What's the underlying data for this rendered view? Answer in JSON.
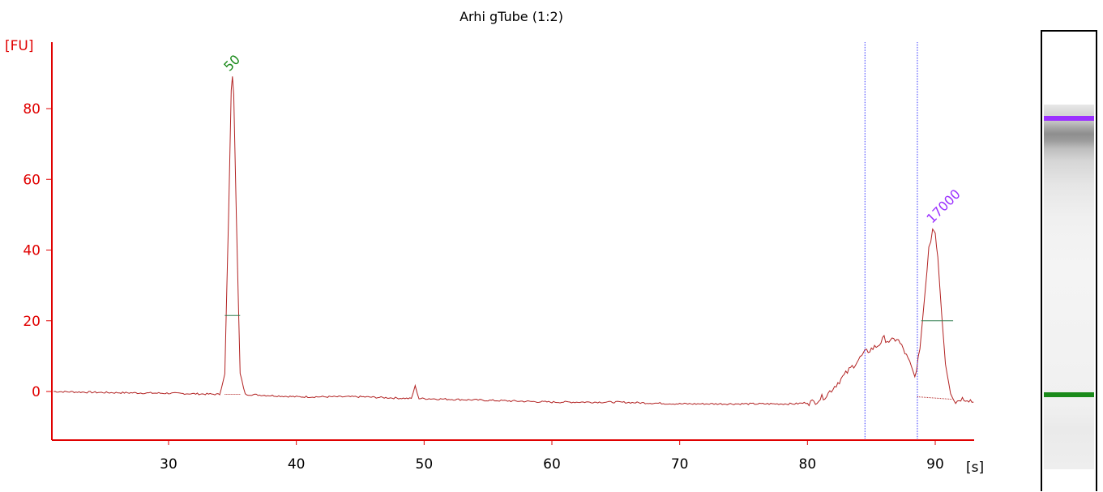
{
  "chart_data": {
    "type": "line",
    "title": "Arhi gTube (1:2)",
    "ylabel": "[FU]",
    "xlabel": "[s]",
    "xlim": [
      21,
      93
    ],
    "ylim": [
      -13,
      100
    ],
    "xticks": [
      30,
      40,
      50,
      60,
      70,
      80,
      90
    ],
    "yticks": [
      0,
      20,
      40,
      60,
      80
    ],
    "colors": {
      "trace": "#b22222",
      "axis": "#e00000",
      "marker": "#3a3aff",
      "lower_marker": "#1a8a1a",
      "upper_marker": "#9b30ff"
    },
    "series": [
      {
        "x": [
          21,
          25,
          30,
          34,
          34.4,
          34.7,
          34.9,
          35.0,
          35.1,
          35.3,
          35.6,
          36.0,
          40,
          45,
          49.0,
          49.3,
          49.6,
          50,
          55,
          60,
          65,
          70,
          75,
          79,
          80.5,
          81.5,
          82.5,
          83.5,
          84.5,
          85.5,
          86.0,
          86.5,
          87.0,
          87.5,
          88.0,
          88.4,
          88.8,
          89.2,
          89.5,
          89.8,
          90.0,
          90.2,
          90.5,
          90.8,
          91.2,
          91.6,
          92.0,
          92.5,
          93.0
        ],
        "y": [
          0,
          -0.3,
          -0.5,
          -0.8,
          5,
          50,
          85,
          89,
          84,
          50,
          5,
          -0.8,
          -1.5,
          -1.5,
          -2,
          1.5,
          -2,
          -2,
          -2.5,
          -3,
          -3,
          -3.5,
          -3.5,
          -3.5,
          -3,
          -1,
          3,
          7,
          11,
          13,
          15,
          14,
          15,
          12,
          8,
          4,
          12,
          28,
          40,
          46,
          45,
          38,
          22,
          8,
          0,
          -3,
          -2,
          -2,
          -3
        ]
      }
    ],
    "peaks": [
      {
        "label": "50",
        "x": 35.0,
        "y": 89,
        "half_height": 21.5,
        "half_x": [
          34.4,
          35.6
        ]
      },
      {
        "label": "17000",
        "x": 90.0,
        "y": 46,
        "half_height": 20,
        "half_x": [
          88.9,
          91.4
        ]
      }
    ],
    "region_markers": [
      84.5,
      88.6
    ],
    "gel_bands": [
      "upper-marker",
      "lower-marker"
    ]
  }
}
